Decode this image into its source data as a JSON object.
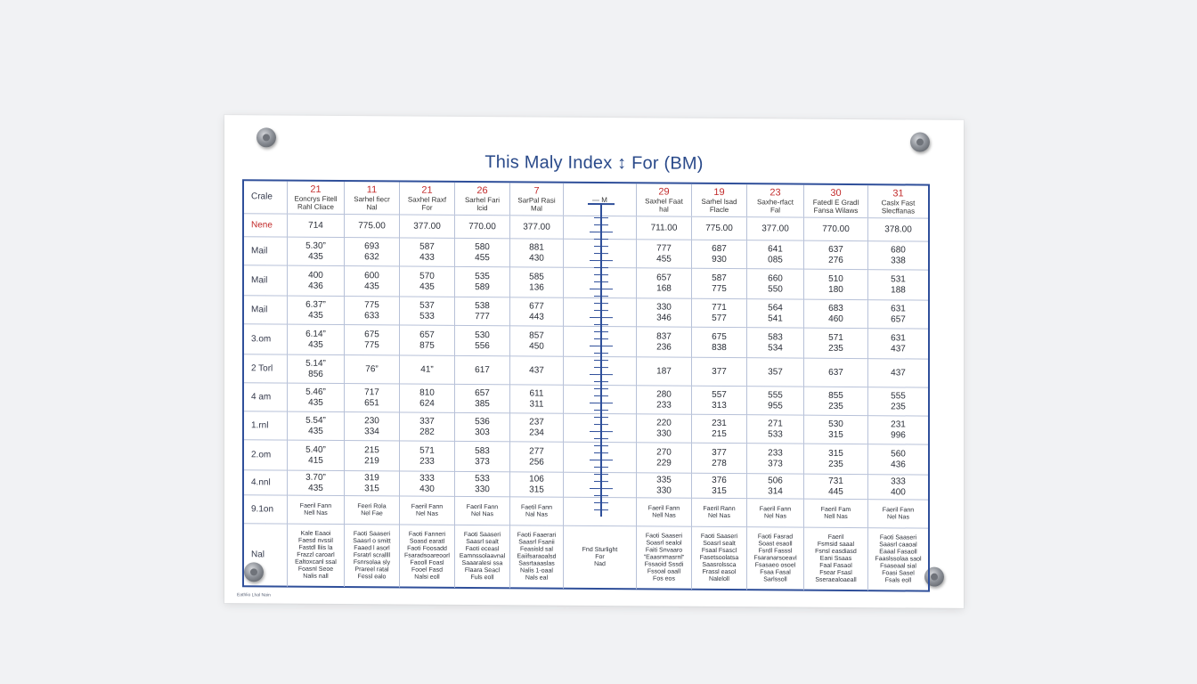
{
  "title": "This Maly Index ↕ For (BM)",
  "footnote": "Eathlio Lhal Nain",
  "header": {
    "label": "Crale",
    "columns": [
      {
        "num": "21",
        "sub1": "Eoncrys Fitell",
        "sub2": "Rahl Cliace"
      },
      {
        "num": "11",
        "sub1": "Sarhel fiecr",
        "sub2": "Nal"
      },
      {
        "num": "21",
        "sub1": "Saxhel Raxf",
        "sub2": "For"
      },
      {
        "num": "26",
        "sub1": "Sarhel Fari",
        "sub2": "lcid"
      },
      {
        "num": "7",
        "sub1": "SarPal Rasi",
        "sub2": "Mal"
      },
      {
        "num": "",
        "sub1": "— M",
        "sub2": ""
      },
      {
        "num": "29",
        "sub1": "Saxhel Faat",
        "sub2": "hal"
      },
      {
        "num": "19",
        "sub1": "Sarhel lsad",
        "sub2": "Flacle"
      },
      {
        "num": "23",
        "sub1": "Saxhe-rfact",
        "sub2": "Fal"
      },
      {
        "num": "30",
        "sub1": "Fatedl E Gradl",
        "sub2": "Fansa Wilaws"
      },
      {
        "num": "31",
        "sub1": "Caslx Fast",
        "sub2": "Slecffanas"
      }
    ]
  },
  "rows": [
    {
      "label": "Nene",
      "cells": [
        [
          "714"
        ],
        [
          "775.00"
        ],
        [
          "377.00"
        ],
        [
          "770.00"
        ],
        [
          "377.00"
        ],
        [
          ""
        ],
        [
          "711.00"
        ],
        [
          "775.00"
        ],
        [
          "377.00"
        ],
        [
          "770.00"
        ],
        [
          "378.00"
        ]
      ]
    },
    {
      "label": "Mail",
      "cells": [
        [
          "5.30”",
          "435"
        ],
        [
          "693",
          "632"
        ],
        [
          "587",
          "433"
        ],
        [
          "580",
          "455"
        ],
        [
          "881",
          "430"
        ],
        [
          ""
        ],
        [
          "777",
          "455"
        ],
        [
          "687",
          "930"
        ],
        [
          "641",
          "085"
        ],
        [
          "637",
          "276"
        ],
        [
          "680",
          "338"
        ]
      ]
    },
    {
      "label": "Mail",
      "cells": [
        [
          "400",
          "436"
        ],
        [
          "600",
          "435"
        ],
        [
          "570",
          "435"
        ],
        [
          "535",
          "589"
        ],
        [
          "585",
          "136"
        ],
        [
          ""
        ],
        [
          "657",
          "168"
        ],
        [
          "587",
          "775"
        ],
        [
          "660",
          "550"
        ],
        [
          "510",
          "180"
        ],
        [
          "531",
          "188"
        ]
      ]
    },
    {
      "label": "Mail",
      "cells": [
        [
          "6.37”",
          "435"
        ],
        [
          "775",
          "633"
        ],
        [
          "537",
          "533"
        ],
        [
          "538",
          "777"
        ],
        [
          "677",
          "443"
        ],
        [
          ""
        ],
        [
          "330",
          "346"
        ],
        [
          "771",
          "577"
        ],
        [
          "564",
          "541"
        ],
        [
          "683",
          "460"
        ],
        [
          "631",
          "657"
        ]
      ]
    },
    {
      "label": "3.om",
      "cells": [
        [
          "6.14”",
          "435"
        ],
        [
          "675",
          "775"
        ],
        [
          "657",
          "875"
        ],
        [
          "530",
          "556"
        ],
        [
          "857",
          "450"
        ],
        [
          ""
        ],
        [
          "837",
          "236"
        ],
        [
          "675",
          "838"
        ],
        [
          "583",
          "534"
        ],
        [
          "571",
          "235"
        ],
        [
          "631",
          "437"
        ]
      ]
    },
    {
      "label": "2 Torl",
      "cells": [
        [
          "5.14”",
          "856"
        ],
        [
          "76”"
        ],
        [
          "41”"
        ],
        [
          "617"
        ],
        [
          "437"
        ],
        [
          ""
        ],
        [
          "187"
        ],
        [
          "377"
        ],
        [
          "357"
        ],
        [
          "637"
        ],
        [
          "437"
        ]
      ]
    },
    {
      "label": "4 am",
      "cells": [
        [
          "5.46”",
          "435"
        ],
        [
          "717",
          "651"
        ],
        [
          "810",
          "624"
        ],
        [
          "657",
          "385"
        ],
        [
          "611",
          "311"
        ],
        [
          ""
        ],
        [
          "280",
          "233"
        ],
        [
          "557",
          "313"
        ],
        [
          "555",
          "955"
        ],
        [
          "855",
          "235"
        ],
        [
          "555",
          "235"
        ]
      ]
    },
    {
      "label": "1.rnl",
      "cells": [
        [
          "5.54”",
          "435"
        ],
        [
          "230",
          "334"
        ],
        [
          "337",
          "282"
        ],
        [
          "536",
          "303"
        ],
        [
          "237",
          "234"
        ],
        [
          ""
        ],
        [
          "220",
          "330"
        ],
        [
          "231",
          "215"
        ],
        [
          "271",
          "533"
        ],
        [
          "530",
          "315"
        ],
        [
          "231",
          "996"
        ]
      ]
    },
    {
      "label": "2.om",
      "cells": [
        [
          "5.40”",
          "415"
        ],
        [
          "215",
          "219"
        ],
        [
          "571",
          "233"
        ],
        [
          "583",
          "373"
        ],
        [
          "277",
          "256"
        ],
        [
          ""
        ],
        [
          "270",
          "229"
        ],
        [
          "377",
          "278"
        ],
        [
          "233",
          "373"
        ],
        [
          "315",
          "235"
        ],
        [
          "560",
          "436"
        ]
      ]
    },
    {
      "label": "4.nnl",
      "cells": [
        [
          "3.70”",
          "435"
        ],
        [
          "319",
          "315"
        ],
        [
          "333",
          "430"
        ],
        [
          "533",
          "330"
        ],
        [
          "106",
          "315"
        ],
        [
          ""
        ],
        [
          "335",
          "330"
        ],
        [
          "376",
          "315"
        ],
        [
          "506",
          "314"
        ],
        [
          "731",
          "445"
        ],
        [
          "333",
          "400"
        ]
      ]
    },
    {
      "label": "9.1on",
      "cells": [
        [
          "Faeril Fann",
          "Nell Nas"
        ],
        [
          "Feeri Rola",
          "Nel Fae"
        ],
        [
          "Faeril Fann",
          "Nel Nas"
        ],
        [
          "Faeril Fann",
          "Nel Nas"
        ],
        [
          "Faetil Fann",
          "Nal Nas"
        ],
        [
          ""
        ],
        [
          "Faeril Fann",
          "Nell Nas"
        ],
        [
          "Faeril Rann",
          "Nel Nas"
        ],
        [
          "Faeril Fann",
          "Nel Nas"
        ],
        [
          "Faeril Fam",
          "Nell Nas"
        ],
        [
          "Faeril Fann",
          "Nel Nas"
        ]
      ]
    },
    {
      "label": "Nal",
      "cells": [
        [
          "Kale Eaaoi",
          "Faesd nvssil",
          "Fastdl lliis la",
          "Frazzl caroarl",
          "Ealtoxcanl ssal",
          "Foasnl Seoe",
          "Nalis nall"
        ],
        [
          "Faoti Saaseri",
          "Saasrl o smitt",
          "Faaed l  asorl",
          "Fsratrl scrallll",
          "Fsnrsolaa sly",
          "Prareel ratal",
          "Fessl ealo"
        ],
        [
          "Faoti Fanneri",
          "Soasd earatl",
          "Faoti Foosadd",
          "Fsaradsoareoorl",
          "Faooll Foasl",
          "Fooel Fasd",
          "Nalsi eoll"
        ],
        [
          "Faoti Saaseri",
          "Saasrl sealt",
          "Faoti eceasl",
          "Eamnssolaavnal",
          "Saaaralesi ssa",
          "Flaara Seacl",
          "Fuls eoll"
        ],
        [
          "Faoti Faaerari",
          "Saasrl Fsanii",
          "Feasisld sal",
          "Eaiifsaraoalsd",
          "Sasrtaaaslas",
          "Nalis 1-oaal",
          "Nals eal"
        ],
        [
          "Fnd Sturlight",
          "For",
          "Nad"
        ],
        [
          "Faoti Saaseri",
          "Soasrl sealol",
          "Faiti Snvaaro",
          "“Eaasnmasrnl”",
          "Fssaoid Sssdi",
          "Fssoal oaall",
          "Fos eos"
        ],
        [
          "Faoti Saaseri",
          "Soasrl sealt",
          "Fsaal Fsascl",
          "Fasetsoolatsa",
          "Saasrolssca",
          "Frassl easol",
          "Naleloll"
        ],
        [
          "Faoti Fasrad",
          "Soast esaoll",
          "Fsrdl Fasssl",
          "Fsaranarsoeavl",
          "Fsasaeo osoel",
          "Fsaa Fasal",
          "Sarlssoll"
        ],
        [
          "Faeril",
          "Fsmsid saaal",
          "Fsnsl easdiasd",
          "Eani Ssaas",
          "Faal Fasaol",
          "Fsear Fsasl",
          "Sseraealoaeall"
        ],
        [
          "Faoti Saaseri",
          "Saasrl caaoal",
          "Eaaal Fasaoll",
          "Faaslssolaa saol",
          "Fsaseaal sial",
          "Foasi Sasel",
          "Fsals eoll"
        ]
      ]
    }
  ]
}
